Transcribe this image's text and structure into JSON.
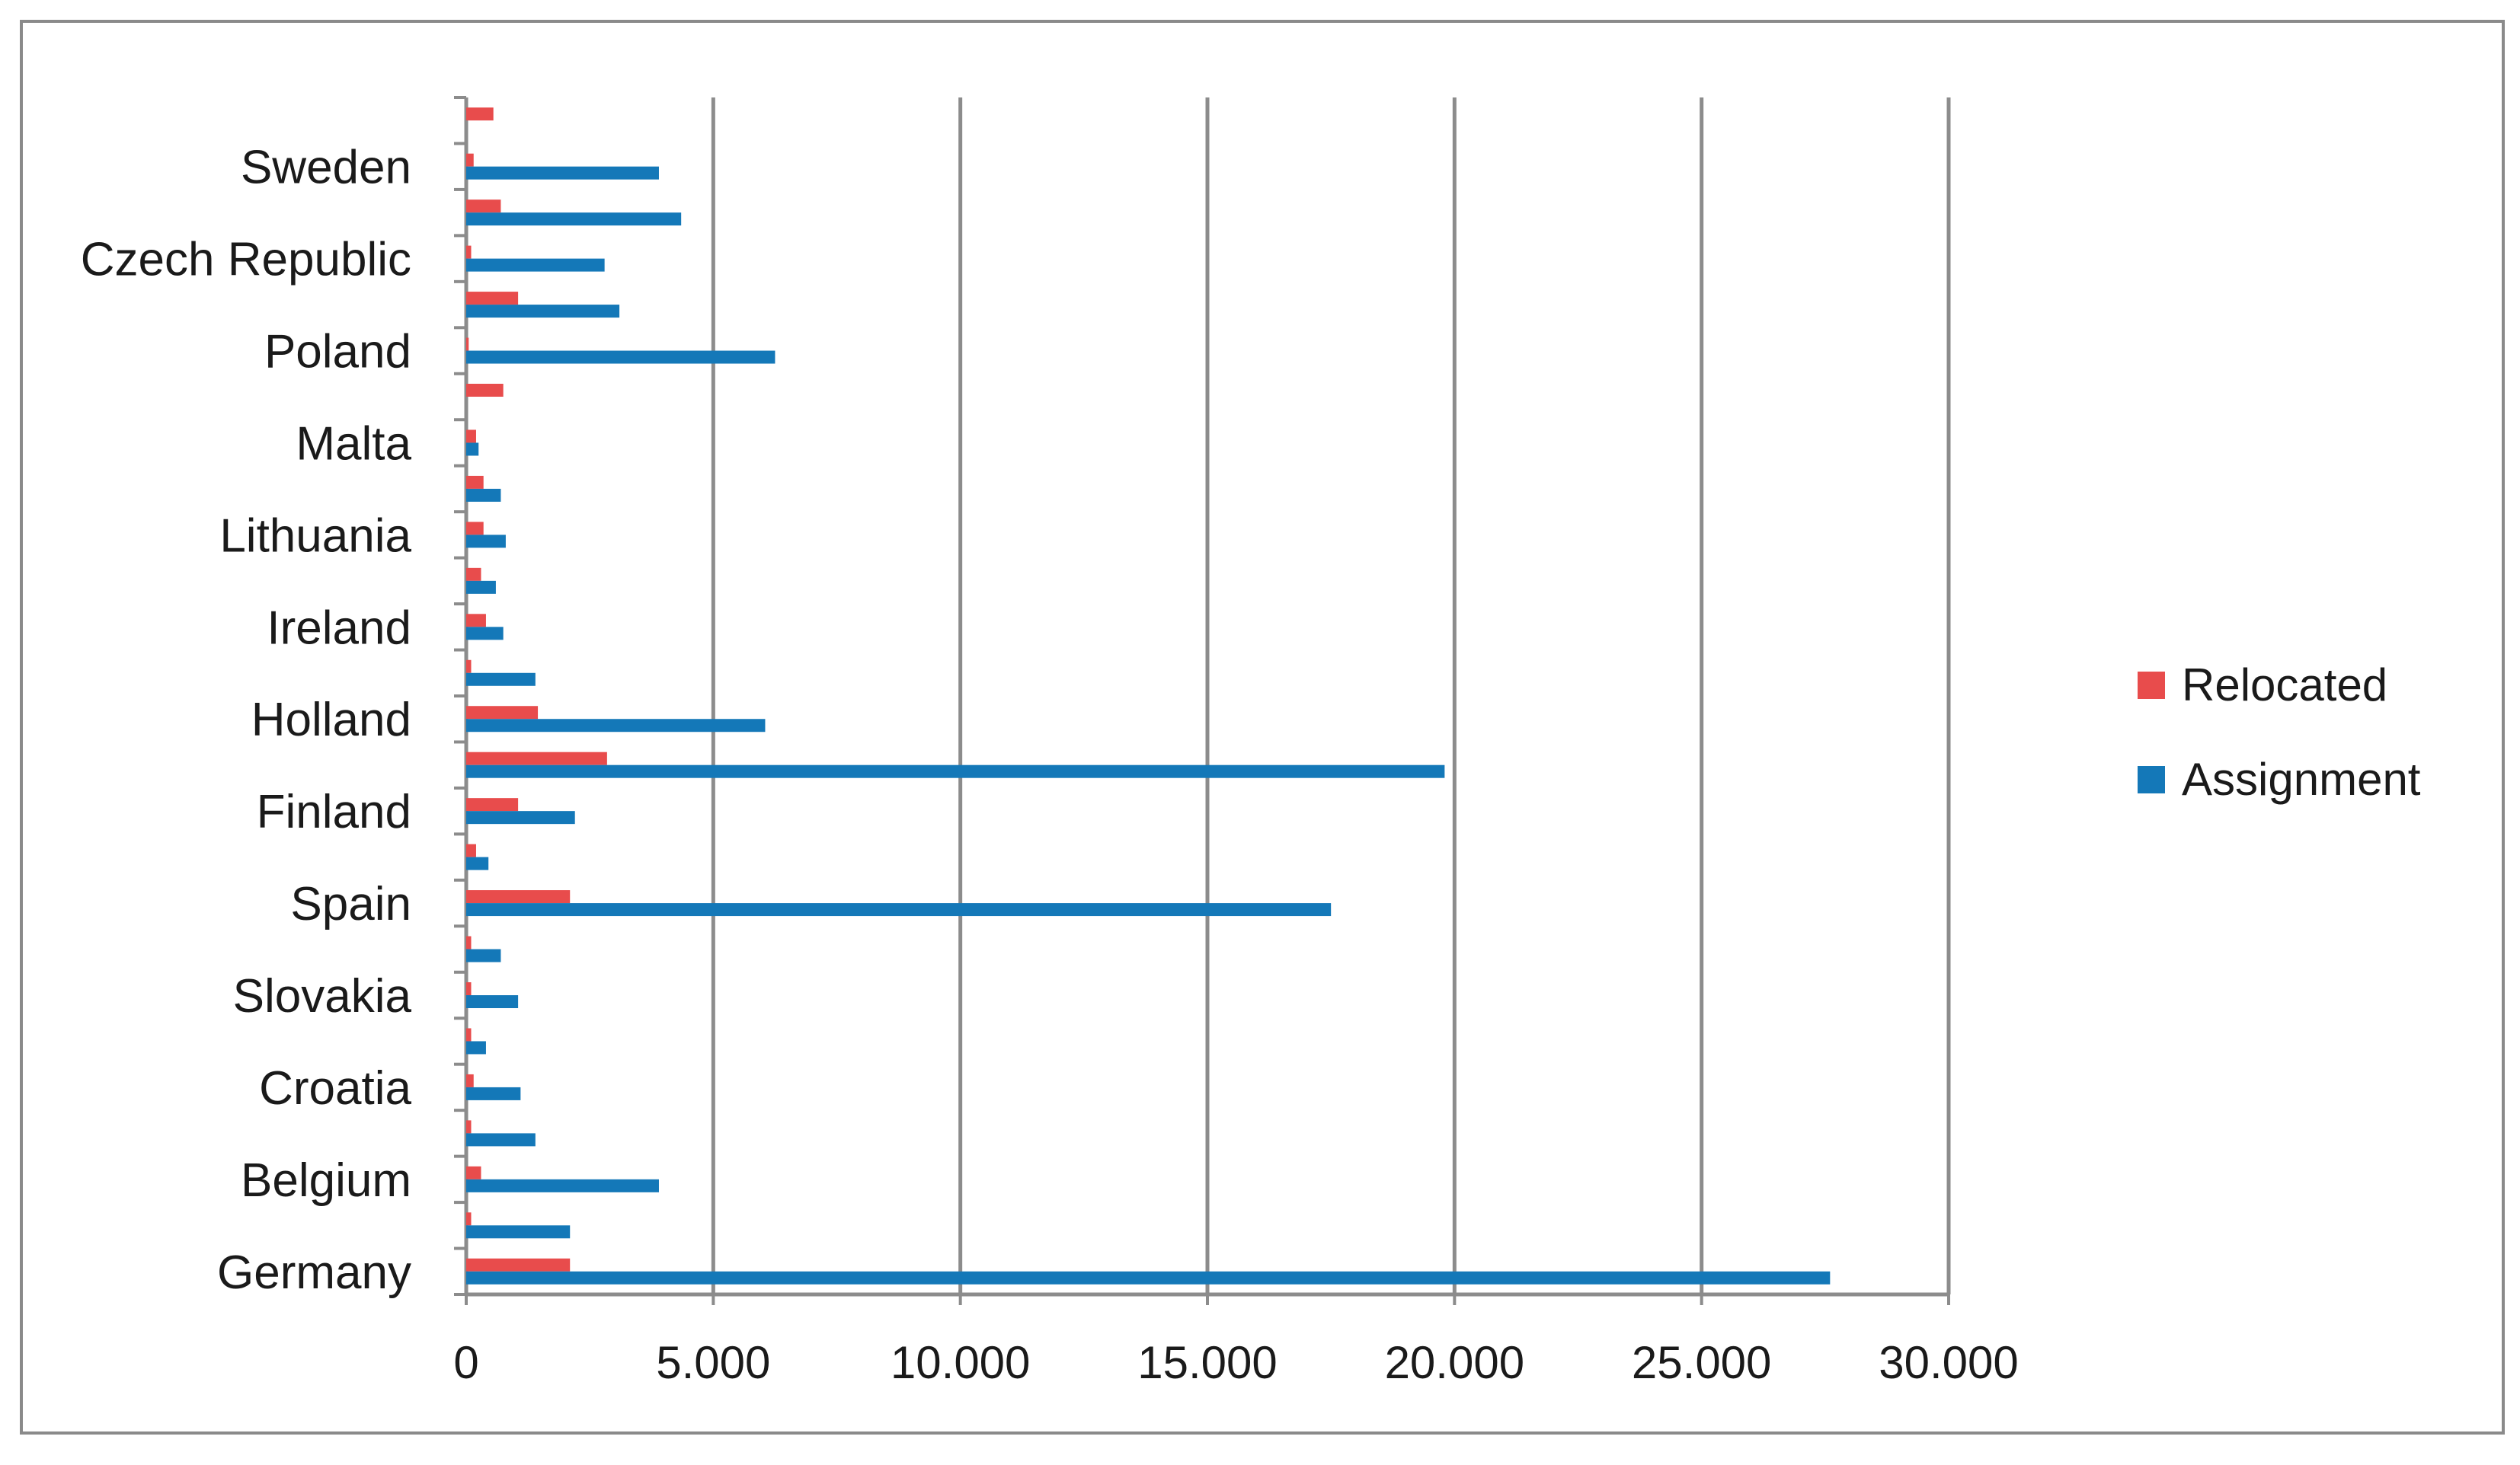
{
  "chart_data": {
    "type": "bar",
    "orientation": "horizontal",
    "categories": [
      "Germany",
      "",
      "Belgium",
      "",
      "Croatia",
      "",
      "Slovakia",
      "",
      "Spain",
      "",
      "Finland",
      "",
      "Holland",
      "",
      "Ireland",
      "",
      "Lithuania",
      "",
      "Malta",
      "",
      "Poland",
      "",
      "Czech Republic",
      "",
      "Sweden",
      ""
    ],
    "series": [
      {
        "name": "Relocated",
        "color": "#e84c4c",
        "values": [
          2100,
          100,
          300,
          100,
          150,
          100,
          100,
          100,
          2100,
          200,
          1050,
          2850,
          1450,
          100,
          400,
          300,
          350,
          350,
          200,
          750,
          50,
          1050,
          100,
          700,
          150,
          550
        ]
      },
      {
        "name": "Assignment",
        "color": "#1478b8",
        "values": [
          27600,
          2100,
          3900,
          1400,
          1100,
          400,
          1050,
          700,
          17500,
          450,
          2200,
          19800,
          6050,
          1400,
          750,
          600,
          800,
          700,
          250,
          0,
          6250,
          3100,
          2800,
          4350,
          3900,
          0
        ]
      }
    ],
    "xlim": [
      0,
      30000
    ],
    "x_ticks": [
      "0",
      "5.000",
      "10.000",
      "15.000",
      "20.000",
      "25.000",
      "30.000"
    ],
    "grid": true,
    "legend": {
      "position": "right",
      "entries": [
        "Relocated",
        "Assignment"
      ]
    },
    "title": "",
    "xlabel": "",
    "ylabel": ""
  }
}
